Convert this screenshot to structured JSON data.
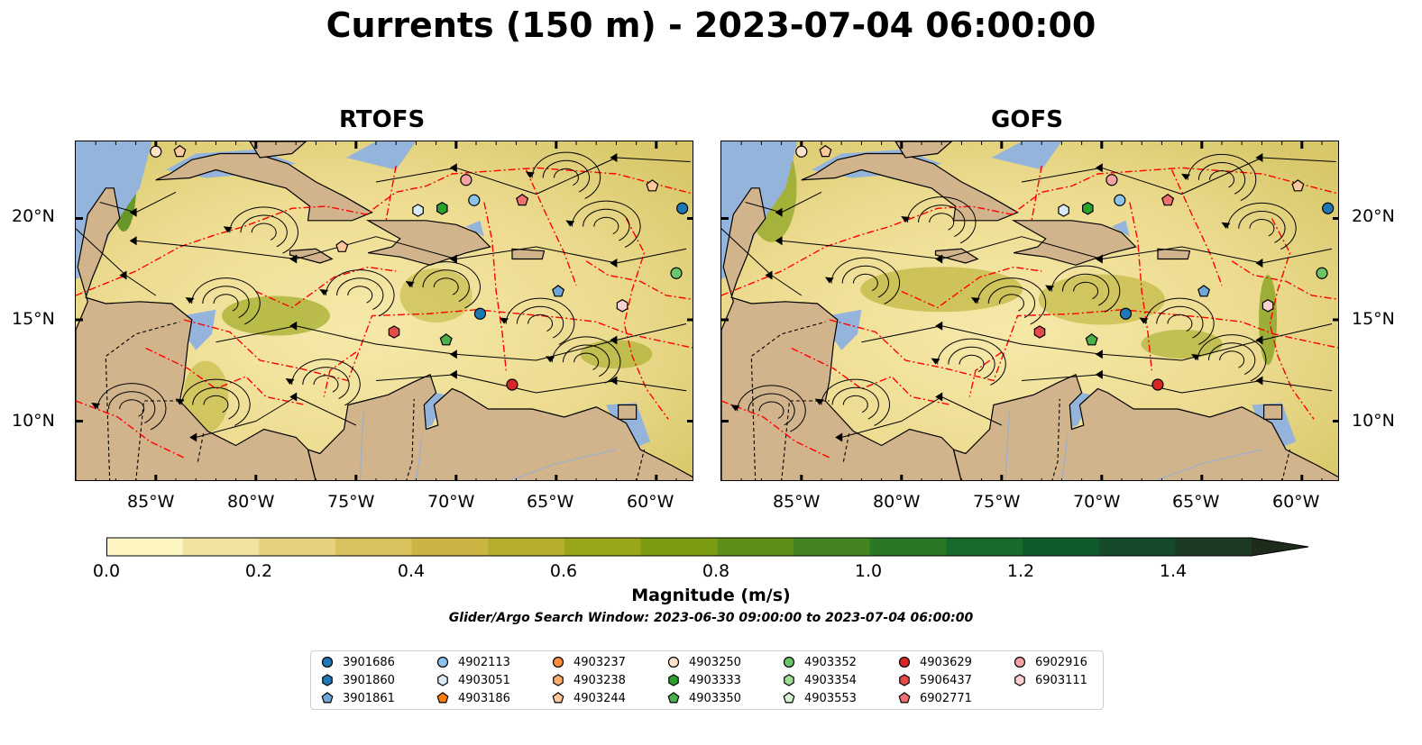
{
  "title": "Currents (150 m) - 2023-07-04 06:00:00",
  "panels": [
    {
      "title": "RTOFS"
    },
    {
      "title": "GOFS"
    }
  ],
  "axes": {
    "lat_labels": [
      "20°N",
      "15°N",
      "10°N"
    ],
    "lon_labels": [
      "85°W",
      "80°W",
      "75°W",
      "70°W",
      "65°W",
      "60°W"
    ]
  },
  "colorbar": {
    "label": "Magnitude (m/s)",
    "ticks": [
      "0.0",
      "0.2",
      "0.4",
      "0.6",
      "0.8",
      "1.0",
      "1.2",
      "1.4"
    ],
    "range": [
      0.0,
      1.5
    ],
    "extend": "max",
    "colors": [
      "#fdf6c3",
      "#f2e4a0",
      "#e6d27e",
      "#d9c15e",
      "#cbb444",
      "#b5ad2c",
      "#9aa61a",
      "#7b9b12",
      "#5e8f16",
      "#438420",
      "#2a7827",
      "#176a2c",
      "#0e5b2c",
      "#154a2a",
      "#1c3a24",
      "#1d2b1a"
    ]
  },
  "search_window": "Glider/Argo Search Window: 2023-06-30 09:00:00 to 2023-07-04 06:00:00",
  "colors": {
    "land": "#d2b48c",
    "shallow_water": "#95b4dc",
    "eez_line": "#ff0000",
    "streamline": "#000000"
  },
  "legend": [
    {
      "id": "3901686",
      "color": "#1f77b4",
      "marker": "circle"
    },
    {
      "id": "3901860",
      "color": "#1f77b4",
      "marker": "hexagon"
    },
    {
      "id": "3901861",
      "color": "#6fa6d9",
      "marker": "pentagon"
    },
    {
      "id": "4902113",
      "color": "#8dc2ea",
      "marker": "circle"
    },
    {
      "id": "4903051",
      "color": "#d9ebf9",
      "marker": "hexagon"
    },
    {
      "id": "4903186",
      "color": "#ff7f0e",
      "marker": "pentagon"
    },
    {
      "id": "4903237",
      "color": "#fd8d3c",
      "marker": "circle"
    },
    {
      "id": "4903238",
      "color": "#fdae6b",
      "marker": "hexagon"
    },
    {
      "id": "4903244",
      "color": "#fdc99a",
      "marker": "pentagon"
    },
    {
      "id": "4903250",
      "color": "#fee3c8",
      "marker": "circle"
    },
    {
      "id": "4903333",
      "color": "#2ca02c",
      "marker": "hexagon"
    },
    {
      "id": "4903350",
      "color": "#4daf4a",
      "marker": "pentagon"
    },
    {
      "id": "4903352",
      "color": "#6cc46a",
      "marker": "circle"
    },
    {
      "id": "4903354",
      "color": "#9fdc98",
      "marker": "hexagon"
    },
    {
      "id": "4903553",
      "color": "#d3f2cf",
      "marker": "pentagon"
    },
    {
      "id": "4903629",
      "color": "#d62728",
      "marker": "circle"
    },
    {
      "id": "5906437",
      "color": "#e34a4a",
      "marker": "hexagon"
    },
    {
      "id": "6902771",
      "color": "#f07070",
      "marker": "pentagon"
    },
    {
      "id": "6902916",
      "color": "#f4a3a3",
      "marker": "circle"
    },
    {
      "id": "6903111",
      "color": "#fbd0d0",
      "marker": "hexagon"
    }
  ],
  "floats_rtofs": [
    {
      "id": "4903250",
      "lon": -85.0,
      "lat": 23.3
    },
    {
      "id": "4903244",
      "lon": -83.8,
      "lat": 23.3
    },
    {
      "id": "4903051",
      "lon": -71.9,
      "lat": 20.4
    },
    {
      "id": "4903333",
      "lon": -70.7,
      "lat": 20.5
    },
    {
      "id": "6902916",
      "lon": -69.5,
      "lat": 21.9
    },
    {
      "id": "4902113",
      "lon": -69.1,
      "lat": 20.9
    },
    {
      "id": "6902771",
      "lon": -66.7,
      "lat": 20.9
    },
    {
      "id": "4903244",
      "lon": -60.2,
      "lat": 21.6
    },
    {
      "id": "3901686",
      "lon": -58.7,
      "lat": 20.5
    },
    {
      "id": "4903352",
      "lon": -59.0,
      "lat": 17.3
    },
    {
      "id": "4903244",
      "lon": -75.7,
      "lat": 18.6
    },
    {
      "id": "3901861",
      "lon": -64.9,
      "lat": 16.4
    },
    {
      "id": "3901686",
      "lon": -68.8,
      "lat": 15.3
    },
    {
      "id": "6903111",
      "lon": -61.7,
      "lat": 15.7
    },
    {
      "id": "5906437",
      "lon": -73.1,
      "lat": 14.4
    },
    {
      "id": "4903350",
      "lon": -70.5,
      "lat": 14.0
    },
    {
      "id": "4903629",
      "lon": -67.2,
      "lat": 11.8
    }
  ],
  "floats_gofs": [
    {
      "id": "4903250",
      "lon": -85.0,
      "lat": 23.3
    },
    {
      "id": "4903244",
      "lon": -83.8,
      "lat": 23.3
    },
    {
      "id": "4903051",
      "lon": -71.9,
      "lat": 20.4
    },
    {
      "id": "4903333",
      "lon": -70.7,
      "lat": 20.5
    },
    {
      "id": "6902916",
      "lon": -69.5,
      "lat": 21.9
    },
    {
      "id": "4902113",
      "lon": -69.1,
      "lat": 20.9
    },
    {
      "id": "6902771",
      "lon": -66.7,
      "lat": 20.9
    },
    {
      "id": "4903244",
      "lon": -60.2,
      "lat": 21.6
    },
    {
      "id": "3901686",
      "lon": -58.7,
      "lat": 20.5
    },
    {
      "id": "4903352",
      "lon": -59.0,
      "lat": 17.3
    },
    {
      "id": "3901861",
      "lon": -64.9,
      "lat": 16.4
    },
    {
      "id": "3901686",
      "lon": -68.8,
      "lat": 15.3
    },
    {
      "id": "6903111",
      "lon": -61.7,
      "lat": 15.7
    },
    {
      "id": "5906437",
      "lon": -73.1,
      "lat": 14.4
    },
    {
      "id": "4903350",
      "lon": -70.5,
      "lat": 14.0
    },
    {
      "id": "4903629",
      "lon": -67.2,
      "lat": 11.8
    }
  ]
}
